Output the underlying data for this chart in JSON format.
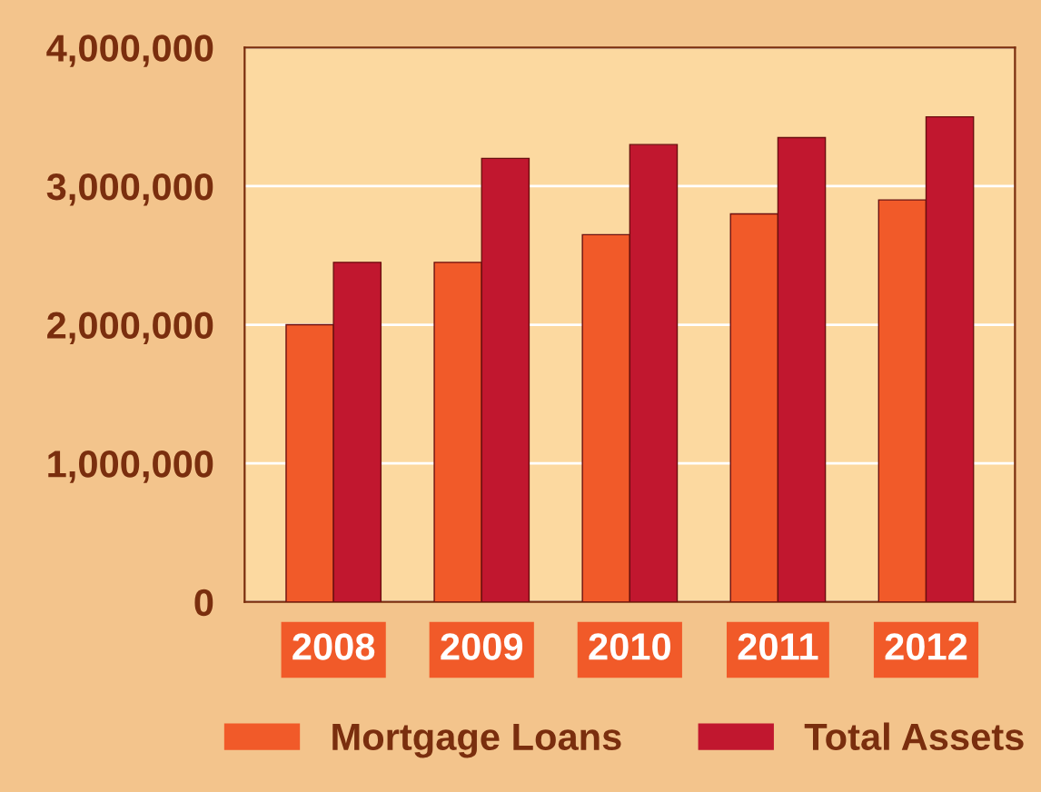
{
  "chart_data": {
    "type": "bar",
    "categories": [
      "2008",
      "2009",
      "2010",
      "2011",
      "2012"
    ],
    "series": [
      {
        "name": "Mortgage Loans",
        "color": "#f15a29",
        "values": [
          2000000,
          2450000,
          2650000,
          2800000,
          2900000
        ]
      },
      {
        "name": "Total Assets",
        "color": "#c1172f",
        "values": [
          2450000,
          3200000,
          3300000,
          3350000,
          3500000
        ]
      }
    ],
    "ylim": [
      0,
      4000000
    ],
    "yticks": [
      {
        "value": 0,
        "label": "0"
      },
      {
        "value": 1000000,
        "label": "1,000,000"
      },
      {
        "value": 2000000,
        "label": "2,000,000"
      },
      {
        "value": 3000000,
        "label": "3,000,000"
      },
      {
        "value": 4000000,
        "label": "4,000,000"
      }
    ],
    "grid": "y",
    "legend": "bottom"
  }
}
